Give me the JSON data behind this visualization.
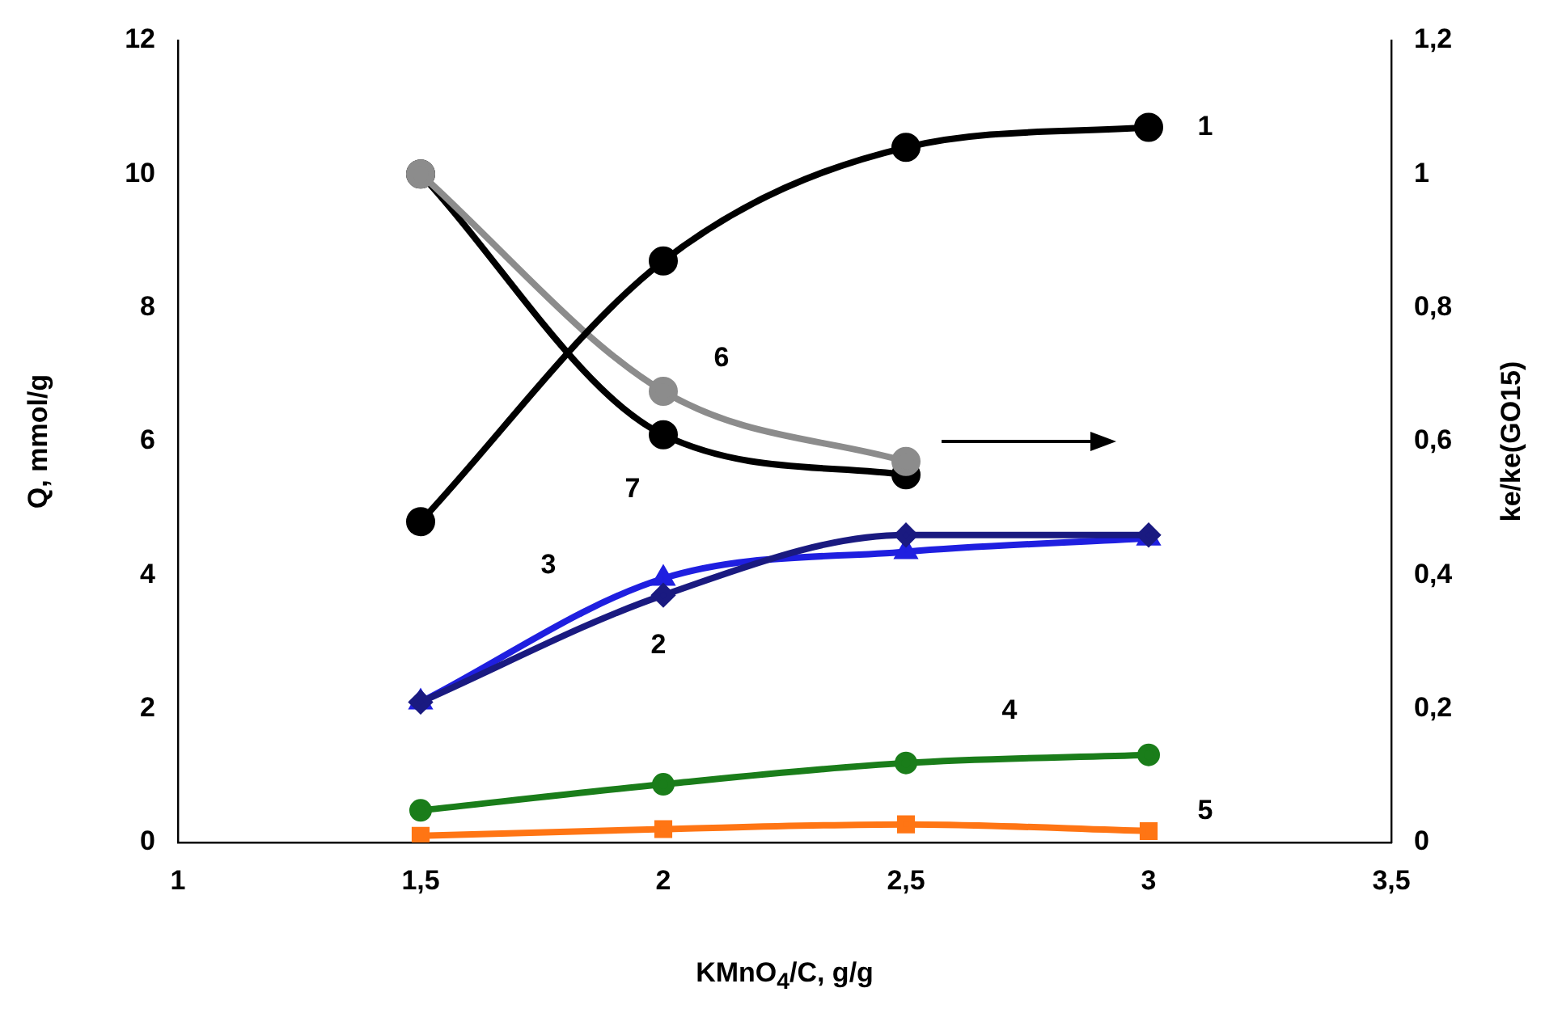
{
  "chart_data": {
    "type": "line",
    "xlabel": "KMnO$_{4}$/C, g/g",
    "ylabel": "Q, mmol/g",
    "y2label": "ke/ke(GO15)",
    "x": [
      1.5,
      2,
      2.5,
      3
    ],
    "xlim": [
      1,
      3.5
    ],
    "xticks": [
      1,
      {
        "value": 1.5,
        "label": "1,5"
      },
      2,
      {
        "value": 2.5,
        "label": "2,5"
      },
      3,
      {
        "value": 3.5,
        "label": "3,5"
      }
    ],
    "ylim": [
      0,
      12
    ],
    "yticks": [
      0,
      2,
      4,
      6,
      8,
      10,
      12
    ],
    "y2lim": [
      0,
      1.2
    ],
    "y2ticks": [
      0,
      {
        "value": 0.2,
        "label": "0,2"
      },
      {
        "value": 0.4,
        "label": "0,4"
      },
      {
        "value": 0.6,
        "label": "0,6"
      },
      {
        "value": 0.8,
        "label": "0,8"
      },
      1,
      {
        "value": 1.2,
        "label": "1,2"
      }
    ],
    "grid": false,
    "legend": false,
    "series": [
      {
        "name": "1",
        "color": "#000000",
        "marker": "circle",
        "values": [
          4.8,
          8.7,
          10.4,
          10.7
        ]
      },
      {
        "name": "2",
        "color": "#1a1a80",
        "marker": "diamond",
        "values": [
          2.1,
          3.7,
          4.6,
          4.6
        ]
      },
      {
        "name": "3",
        "color": "#1f1fe0",
        "marker": "triangle",
        "values": [
          2.1,
          3.95,
          4.35,
          4.55
        ]
      },
      {
        "name": "4",
        "color": "#1a7d1a",
        "marker": "circle",
        "values": [
          0.48,
          0.87,
          1.19,
          1.31
        ]
      },
      {
        "name": "5",
        "color": "#ff7514",
        "marker": "square",
        "values": [
          0.1,
          0.2,
          0.27,
          0.17
        ]
      },
      {
        "name": "6",
        "color": "#8c8c8c",
        "marker": "circle",
        "axis": "y2",
        "values": [
          1.0,
          0.675,
          0.57,
          null
        ]
      },
      {
        "name": "7",
        "color": "#000000",
        "marker": "circle",
        "axis": "y2",
        "values": [
          1.0,
          0.61,
          0.55,
          null
        ]
      }
    ]
  }
}
